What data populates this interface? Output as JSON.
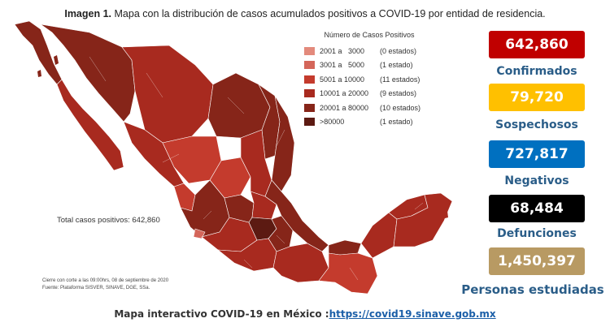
{
  "title": {
    "prefix": "Imagen 1.",
    "text": "Mapa con la distribución de casos acumulados positivos a COVID-19 por entidad de residencia."
  },
  "legend": {
    "title": "Número de Casos Positivos",
    "items": [
      {
        "range": "2001 a   3000",
        "count": "(0 estados)",
        "color": "#e38a7c"
      },
      {
        "range": "3001 a   5000",
        "count": "(1 estado)",
        "color": "#d4665a"
      },
      {
        "range": "5001 a 10000",
        "count": "(11 estados)",
        "color": "#c43b2d"
      },
      {
        "range": "10001 a 20000",
        "count": "(9 estados)",
        "color": "#a82a1f"
      },
      {
        "range": "20001 a 80000",
        "count": "(10 estados)",
        "color": "#862519"
      },
      {
        "range": ">80000",
        "count": "(1 estado)",
        "color": "#5c1a12"
      }
    ]
  },
  "map": {
    "total_label": "Total casos positivos: 642,860",
    "cutoff_note": "Cierre con corte a las 09:00hrs, 08 de septiembre de 2020",
    "source_note": "Fuente: Plataforma SISVER, SINAVE, DGE, SSa."
  },
  "stats": [
    {
      "value": "642,860",
      "label": "Confirmados",
      "bg": "#c00000",
      "fg": "#ffffff"
    },
    {
      "value": "79,720",
      "label": "Sospechosos",
      "bg": "#ffc000",
      "fg": "#ffffff"
    },
    {
      "value": "727,817",
      "label": "Negativos",
      "bg": "#0070c0",
      "fg": "#ffffff"
    },
    {
      "value": "68,484",
      "label": "Defunciones",
      "bg": "#000000",
      "fg": "#ffffff"
    },
    {
      "value": "1,450,397",
      "label": "Personas estudiadas",
      "bg": "#b89a63",
      "fg": "#ffffff"
    }
  ],
  "footer": {
    "text": "Mapa interactivo COVID-19 en México :",
    "link": "https://covid19.sinave.gob.mx"
  }
}
